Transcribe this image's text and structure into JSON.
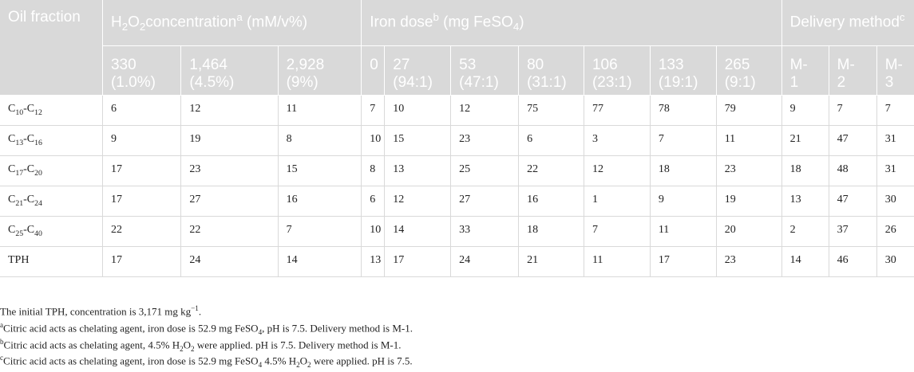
{
  "table": {
    "header_groups": {
      "oil": "Oil fraction",
      "h2o2_parts": [
        "H",
        "2",
        "O",
        "2",
        "concentration",
        "a",
        " (mM/v%)"
      ],
      "iron_parts": [
        "Iron dose",
        "b",
        " (mg FeSO",
        "4",
        ")"
      ],
      "delivery_parts": [
        "Delivery method",
        "c"
      ]
    },
    "subheaders": [
      [
        "330",
        "(1.0%)"
      ],
      [
        "1,464",
        "(4.5%)"
      ],
      [
        "2,928",
        "(9%)"
      ],
      [
        "0",
        ""
      ],
      [
        "27",
        "(94:1)"
      ],
      [
        "53",
        "(47:1)"
      ],
      [
        "80",
        "(31:1)"
      ],
      [
        "106",
        "(23:1)"
      ],
      [
        "133",
        "(19:1)"
      ],
      [
        "265",
        "(9:1)"
      ],
      [
        "M-",
        "1"
      ],
      [
        "M-",
        "2"
      ],
      [
        "M-",
        "3"
      ]
    ],
    "rows": [
      {
        "label_parts": [
          "C",
          "10",
          "-C",
          "12"
        ],
        "values": [
          "6",
          "12",
          "11",
          "7",
          "10",
          "12",
          "75",
          "77",
          "78",
          "79",
          "9",
          "7",
          "7"
        ]
      },
      {
        "label_parts": [
          "C",
          "13",
          "-C",
          "16"
        ],
        "values": [
          "9",
          "19",
          "8",
          "10",
          "15",
          "23",
          "6",
          "3",
          "7",
          "11",
          "21",
          "47",
          "31"
        ]
      },
      {
        "label_parts": [
          "C",
          "17",
          "-C",
          "20"
        ],
        "values": [
          "17",
          "23",
          "15",
          "8",
          "13",
          "25",
          "22",
          "12",
          "18",
          "23",
          "18",
          "48",
          "31"
        ]
      },
      {
        "label_parts": [
          "C",
          "21",
          "-C",
          "24"
        ],
        "values": [
          "17",
          "27",
          "16",
          "6",
          "12",
          "27",
          "16",
          "1",
          "9",
          "19",
          "13",
          "47",
          "30"
        ]
      },
      {
        "label_parts": [
          "C",
          "25",
          "-C",
          "40"
        ],
        "values": [
          "22",
          "22",
          "7",
          "10",
          "14",
          "33",
          "18",
          "7",
          "11",
          "20",
          "2",
          "37",
          "26"
        ]
      },
      {
        "label_parts": [
          "TPH",
          "",
          "",
          ""
        ],
        "values": [
          "17",
          "24",
          "14",
          "13",
          "17",
          "24",
          "21",
          "11",
          "17",
          "23",
          "14",
          "46",
          "30"
        ]
      }
    ]
  },
  "footnotes": {
    "initial_parts": [
      "The initial TPH, concentration is 3,171 mg kg",
      "−1",
      "."
    ],
    "a_parts": [
      "a",
      "Citric acid acts as chelating agent, iron dose is 52.9 mg FeSO",
      "4",
      ", pH is 7.5. Delivery method is M-1."
    ],
    "b_parts": [
      "b",
      "Citric acid acts as chelating agent, 4.5% H",
      "2",
      "O",
      "2",
      " were applied. pH is 7.5. Delivery method is M-1."
    ],
    "c_parts": [
      "c",
      "Citric acid acts as chelating agent, iron dose is 52.9 mg FeSO",
      "4",
      " 4.5% H",
      "2",
      "O",
      "2",
      " were applied. pH is 7.5."
    ]
  }
}
